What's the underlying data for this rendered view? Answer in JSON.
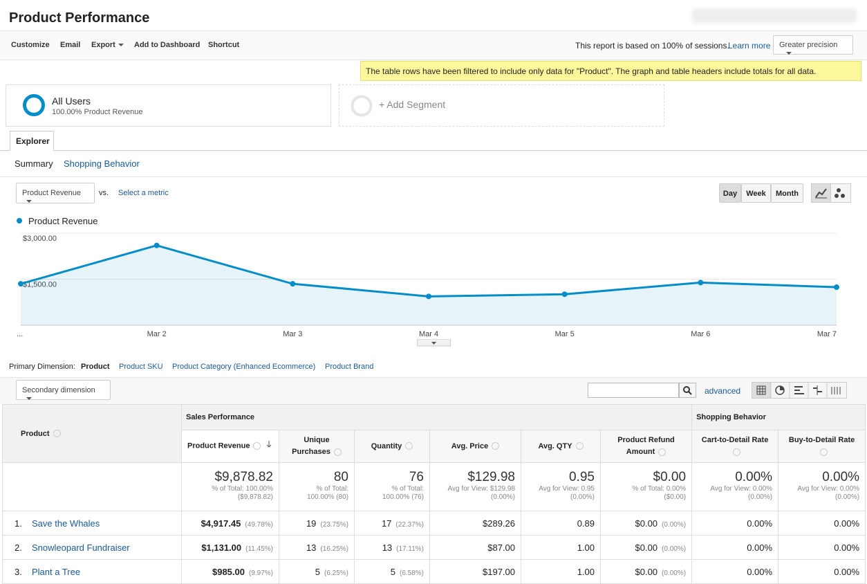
{
  "header": {
    "title": "Product Performance"
  },
  "toolbar": {
    "items": [
      "Customize",
      "Email",
      "Export",
      "Add to Dashboard",
      "Shortcut"
    ],
    "sampling_text": "This report is based on 100% of sessions.",
    "learn_more": "Learn more",
    "precision": "Greater precision"
  },
  "notice": "The table rows have been filtered to include only data for \"Product\". The graph and table headers include totals for all data.",
  "segments": {
    "name": "All Users",
    "detail": "100.00% Product Revenue",
    "add": "+ Add Segment"
  },
  "tabs": {
    "main": "Explorer",
    "sub": [
      "Summary",
      "Shopping Behavior"
    ]
  },
  "controls": {
    "metric": "Product Revenue",
    "vs": "vs.",
    "select_metric": "Select a metric",
    "periods": [
      "Day",
      "Week",
      "Month"
    ]
  },
  "chart_data": {
    "type": "line",
    "categories": [
      "...",
      "Mar 2",
      "Mar 3",
      "Mar 4",
      "Mar 5",
      "Mar 6",
      "Mar 7"
    ],
    "series": [
      {
        "name": "Product Revenue",
        "color": "#058dc7",
        "values": [
          1350,
          2600,
          1350,
          940,
          1010,
          1390,
          1240
        ]
      }
    ],
    "ylim": [
      0,
      3000
    ],
    "yticks": [
      {
        "value": 1500,
        "label": "$1,500.00"
      },
      {
        "value": 3000,
        "label": "$3,000.00"
      }
    ],
    "grid": true
  },
  "dimensions": {
    "label": "Primary Dimension:",
    "active": "Product",
    "options": [
      "Product SKU",
      "Product Category (Enhanced Ecommerce)",
      "Product Brand"
    ],
    "secondary": "Secondary dimension",
    "advanced": "advanced"
  },
  "table": {
    "dimension_header": "Product",
    "groups": [
      "Sales Performance",
      "Shopping Behavior"
    ],
    "columns": [
      "Product Revenue",
      "Unique Purchases",
      "Quantity",
      "Avg. Price",
      "Avg. QTY",
      "Product Refund Amount",
      "Cart-to-Detail Rate",
      "Buy-to-Detail Rate"
    ],
    "totals": [
      {
        "value": "$9,878.82",
        "lines": [
          "% of Total: 100.00%",
          "($9,878.82)"
        ]
      },
      {
        "value": "80",
        "lines": [
          "% of Total:",
          "100.00% (80)"
        ]
      },
      {
        "value": "76",
        "lines": [
          "% of Total:",
          "100.00% (76)"
        ]
      },
      {
        "value": "$129.98",
        "lines": [
          "Avg for View: $129.98",
          "(0.00%)"
        ]
      },
      {
        "value": "0.95",
        "lines": [
          "Avg for View: 0.95",
          "(0.00%)"
        ]
      },
      {
        "value": "$0.00",
        "lines": [
          "% of Total: 0.00%",
          "($0.00)"
        ]
      },
      {
        "value": "0.00%",
        "lines": [
          "Avg for View: 0.00%",
          "(0.00%)"
        ]
      },
      {
        "value": "0.00%",
        "lines": [
          "Avg for View: 0.00%",
          "(0.00%)"
        ]
      }
    ],
    "rows": [
      {
        "rank": "1.",
        "name": "Save the Whales",
        "cells": [
          {
            "value": "$4,917.45",
            "pct": "(49.78%)"
          },
          {
            "value": "19",
            "pct": "(23.75%)"
          },
          {
            "value": "17",
            "pct": "(22.37%)"
          },
          {
            "value": "$289.26"
          },
          {
            "value": "0.89"
          },
          {
            "value": "$0.00",
            "pct": "(0.00%)"
          },
          {
            "value": "0.00%"
          },
          {
            "value": "0.00%"
          }
        ]
      },
      {
        "rank": "2.",
        "name": "Snowleopard Fundraiser",
        "cells": [
          {
            "value": "$1,131.00",
            "pct": "(11.45%)"
          },
          {
            "value": "13",
            "pct": "(16.25%)"
          },
          {
            "value": "13",
            "pct": "(17.11%)"
          },
          {
            "value": "$87.00"
          },
          {
            "value": "1.00"
          },
          {
            "value": "$0.00",
            "pct": "(0.00%)"
          },
          {
            "value": "0.00%"
          },
          {
            "value": "0.00%"
          }
        ]
      },
      {
        "rank": "3.",
        "name": "Plant a Tree",
        "cells": [
          {
            "value": "$985.00",
            "pct": "(9.97%)"
          },
          {
            "value": "5",
            "pct": "(6.25%)"
          },
          {
            "value": "5",
            "pct": "(6.58%)"
          },
          {
            "value": "$197.00"
          },
          {
            "value": "1.00"
          },
          {
            "value": "$0.00",
            "pct": "(0.00%)"
          },
          {
            "value": "0.00%"
          },
          {
            "value": "0.00%"
          }
        ]
      }
    ]
  }
}
